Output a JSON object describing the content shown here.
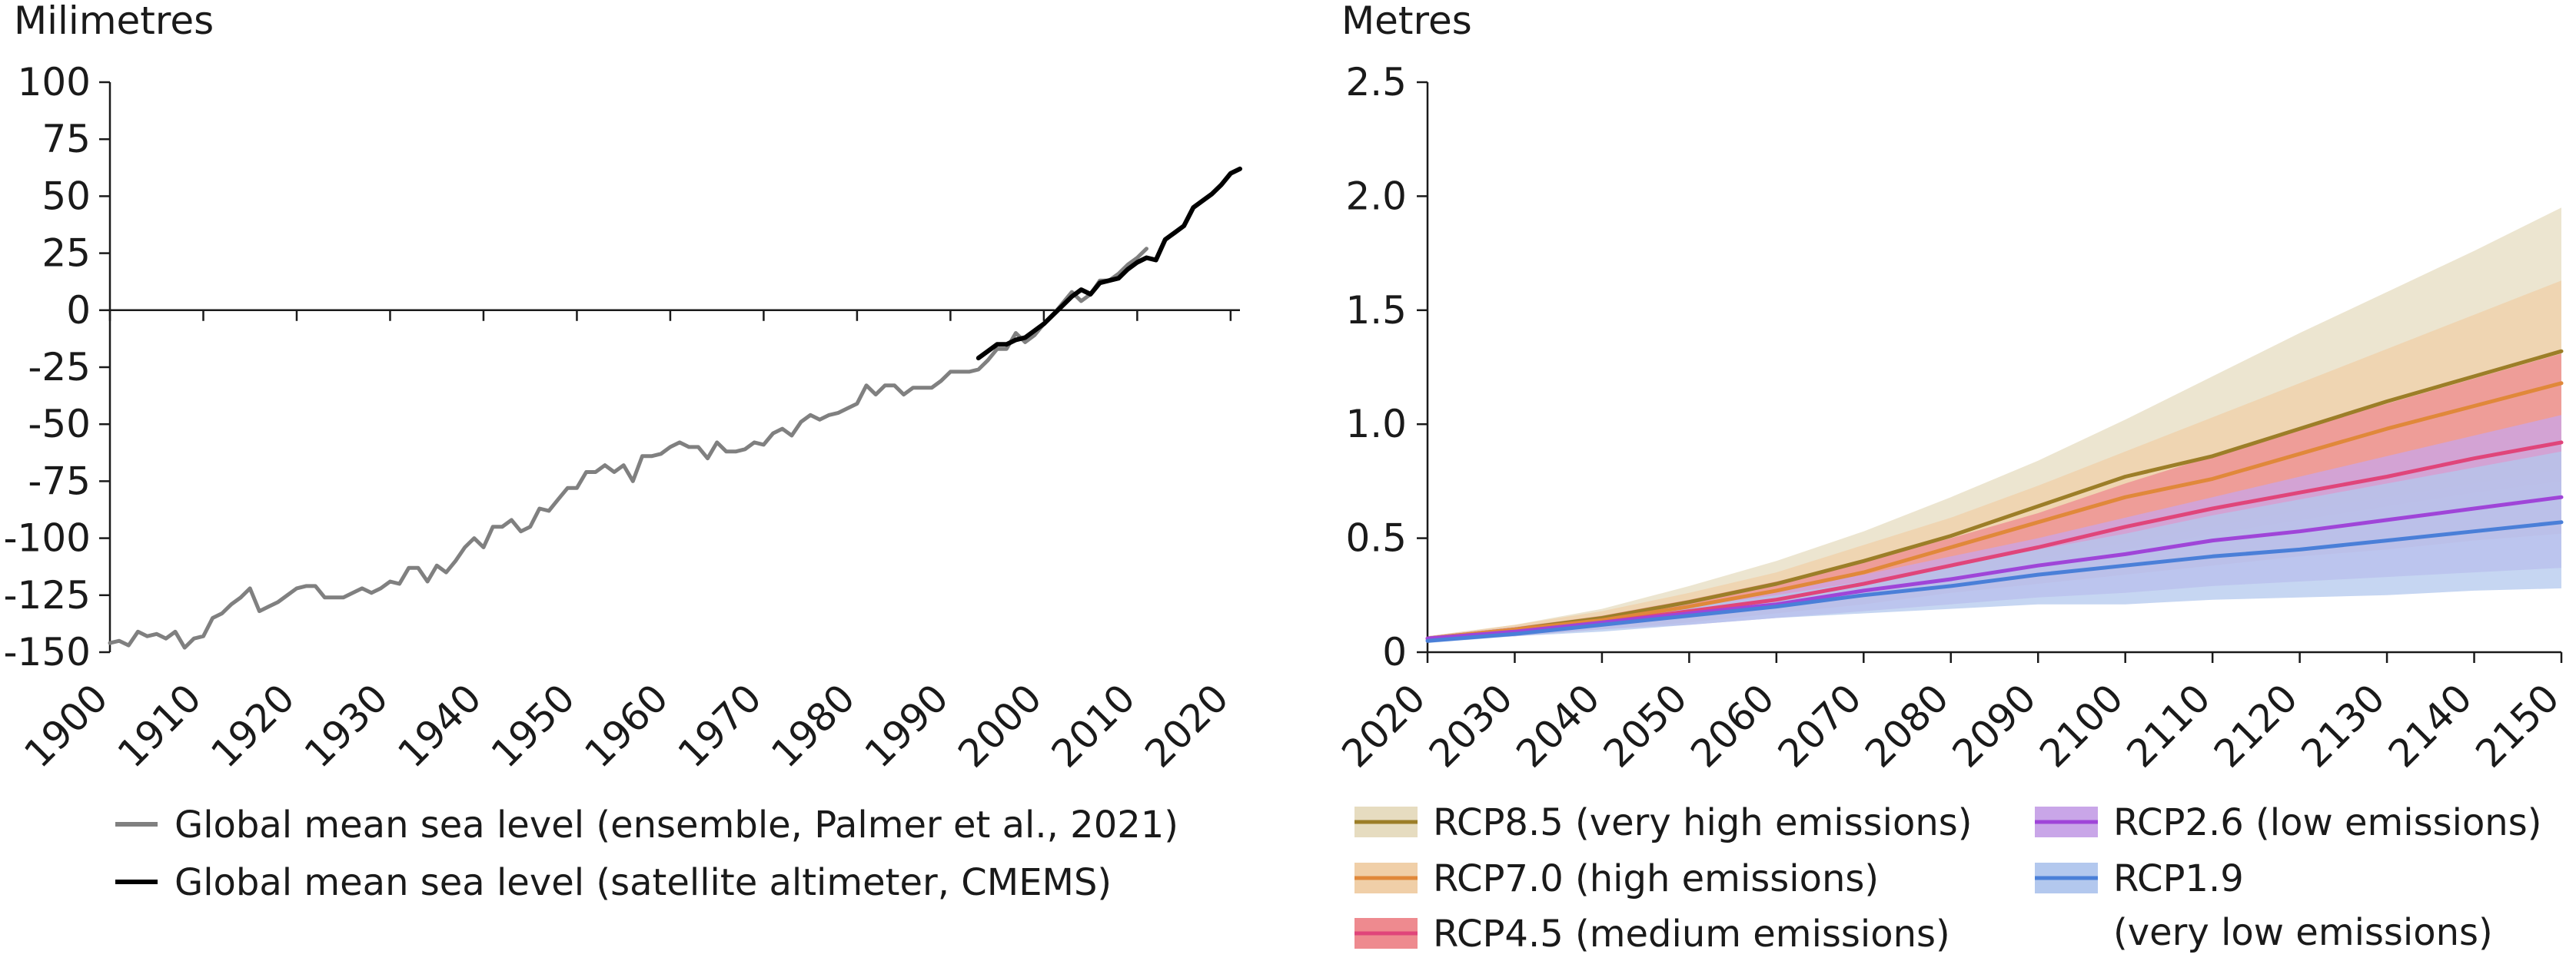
{
  "chart_data": [
    {
      "type": "line",
      "ylabel": "Milimetres",
      "xlim": [
        1900,
        2021
      ],
      "ylim": [
        -150,
        100
      ],
      "x_ticks": [
        "1900",
        "1910",
        "1920",
        "1930",
        "1940",
        "1950",
        "1960",
        "1970",
        "1980",
        "1990",
        "2000",
        "2010",
        "2020"
      ],
      "y_ticks": [
        "100",
        "75",
        "50",
        "25",
        "0",
        "-25",
        "-50",
        "-75",
        "-100",
        "-125",
        "-150"
      ],
      "zero_line": true,
      "legend_position": "bottom-left",
      "series": [
        {
          "name": "Global mean sea level (ensemble, Palmer et al., 2021)",
          "color": "#808080",
          "x": [
            1900,
            1901,
            1902,
            1903,
            1904,
            1905,
            1906,
            1907,
            1908,
            1909,
            1910,
            1911,
            1912,
            1913,
            1914,
            1915,
            1916,
            1917,
            1918,
            1919,
            1920,
            1921,
            1922,
            1923,
            1924,
            1925,
            1926,
            1927,
            1928,
            1929,
            1930,
            1931,
            1932,
            1933,
            1934,
            1935,
            1936,
            1937,
            1938,
            1939,
            1940,
            1941,
            1942,
            1943,
            1944,
            1945,
            1946,
            1947,
            1948,
            1949,
            1950,
            1951,
            1952,
            1953,
            1954,
            1955,
            1956,
            1957,
            1958,
            1959,
            1960,
            1961,
            1962,
            1963,
            1964,
            1965,
            1966,
            1967,
            1968,
            1969,
            1970,
            1971,
            1972,
            1973,
            1974,
            1975,
            1976,
            1977,
            1978,
            1979,
            1980,
            1981,
            1982,
            1983,
            1984,
            1985,
            1986,
            1987,
            1988,
            1989,
            1990,
            1991,
            1992,
            1993,
            1994,
            1995,
            1996,
            1997,
            1998,
            1999,
            2000,
            2001,
            2002,
            2003,
            2004,
            2005,
            2006,
            2007,
            2008,
            2009,
            2010,
            2011
          ],
          "values": [
            -146,
            -145,
            -147,
            -141,
            -143,
            -142,
            -144,
            -141,
            -148,
            -144,
            -143,
            -135,
            -133,
            -129,
            -126,
            -122,
            -132,
            -130,
            -128,
            -125,
            -122,
            -121,
            -121,
            -126,
            -126,
            -126,
            -124,
            -122,
            -124,
            -122,
            -119,
            -120,
            -113,
            -113,
            -119,
            -112,
            -115,
            -110,
            -104,
            -100,
            -104,
            -95,
            -95,
            -92,
            -97,
            -95,
            -87,
            -88,
            -83,
            -78,
            -78,
            -71,
            -71,
            -68,
            -71,
            -68,
            -75,
            -64,
            -64,
            -63,
            -60,
            -58,
            -60,
            -60,
            -65,
            -58,
            -62,
            -62,
            -61,
            -58,
            -59,
            -54,
            -52,
            -55,
            -49,
            -46,
            -48,
            -46,
            -45,
            -43,
            -41,
            -33,
            -37,
            -33,
            -33,
            -37,
            -34,
            -34,
            -34,
            -31,
            -27,
            -27,
            -27,
            -26,
            -22,
            -17,
            -17,
            -10,
            -14,
            -11,
            -6,
            -2,
            3,
            8,
            4,
            7,
            13,
            13,
            16,
            20,
            23,
            27
          ]
        },
        {
          "name": "Global mean sea level (satellite altimeter, CMEMS)",
          "color": "#000000",
          "x": [
            1993,
            1994,
            1995,
            1996,
            1997,
            1998,
            1999,
            2000,
            2001,
            2002,
            2003,
            2004,
            2005,
            2006,
            2007,
            2008,
            2009,
            2010,
            2011,
            2012,
            2013,
            2014,
            2015,
            2016,
            2017,
            2018,
            2019,
            2020,
            2021
          ],
          "values": [
            -21,
            -18,
            -15,
            -15,
            -13,
            -12,
            -9,
            -6,
            -2,
            2,
            6,
            9,
            7,
            12,
            13,
            14,
            18,
            21,
            23,
            22,
            31,
            34,
            37,
            45,
            48,
            51,
            55,
            60,
            62
          ]
        }
      ]
    },
    {
      "type": "area",
      "ylabel": "Metres",
      "xlim": [
        2020,
        2150
      ],
      "ylim": [
        0,
        2.5
      ],
      "x_ticks": [
        "2020",
        "2030",
        "2040",
        "2050",
        "2060",
        "2070",
        "2080",
        "2090",
        "2100",
        "2110",
        "2120",
        "2130",
        "2140",
        "2150"
      ],
      "y_ticks": [
        "2.5",
        "2.0",
        "1.5",
        "1.0",
        "0.5",
        "0"
      ],
      "legend_position": "bottom",
      "x": [
        2020,
        2030,
        2040,
        2050,
        2060,
        2070,
        2080,
        2090,
        2100,
        2110,
        2120,
        2130,
        2140,
        2150
      ],
      "series": [
        {
          "name": "RCP8.5 (very high emissions)",
          "color": "#9C7E28",
          "band_color": "#E6DCC0",
          "values": [
            0.06,
            0.1,
            0.15,
            0.22,
            0.3,
            0.4,
            0.51,
            0.64,
            0.77,
            0.86,
            0.98,
            1.1,
            1.21,
            1.32
          ],
          "lower": [
            0.05,
            0.08,
            0.12,
            0.17,
            0.22,
            0.28,
            0.34,
            0.41,
            0.48,
            0.55,
            0.62,
            0.68,
            0.74,
            0.8
          ],
          "upper": [
            0.07,
            0.12,
            0.19,
            0.29,
            0.4,
            0.53,
            0.68,
            0.84,
            1.02,
            1.21,
            1.4,
            1.58,
            1.76,
            1.95
          ]
        },
        {
          "name": "RCP7.0 (high emissions)",
          "color": "#E0883A",
          "band_color": "#F0CFA8",
          "values": [
            0.06,
            0.1,
            0.14,
            0.2,
            0.27,
            0.35,
            0.46,
            0.57,
            0.68,
            0.76,
            0.87,
            0.98,
            1.08,
            1.18
          ],
          "lower": [
            0.05,
            0.08,
            0.11,
            0.15,
            0.2,
            0.26,
            0.32,
            0.38,
            0.45,
            0.52,
            0.58,
            0.64,
            0.7,
            0.75
          ],
          "upper": [
            0.07,
            0.12,
            0.18,
            0.26,
            0.35,
            0.47,
            0.59,
            0.73,
            0.88,
            1.03,
            1.18,
            1.33,
            1.48,
            1.63
          ]
        },
        {
          "name": "RCP4.5 (medium emissions)",
          "color": "#E0457A",
          "band_color": "#EE8A8F",
          "values": [
            0.06,
            0.09,
            0.13,
            0.18,
            0.23,
            0.3,
            0.38,
            0.46,
            0.55,
            0.63,
            0.7,
            0.77,
            0.85,
            0.92
          ],
          "lower": [
            0.05,
            0.07,
            0.1,
            0.13,
            0.17,
            0.21,
            0.26,
            0.3,
            0.34,
            0.38,
            0.42,
            0.45,
            0.49,
            0.52
          ],
          "upper": [
            0.07,
            0.11,
            0.16,
            0.23,
            0.31,
            0.4,
            0.5,
            0.61,
            0.74,
            0.86,
            0.98,
            1.09,
            1.2,
            1.31
          ]
        },
        {
          "name": "RCP2.6 (low emissions)",
          "color": "#9F45D8",
          "band_color": "#C9A6E8",
          "values": [
            0.06,
            0.09,
            0.13,
            0.17,
            0.21,
            0.27,
            0.32,
            0.38,
            0.43,
            0.49,
            0.53,
            0.58,
            0.63,
            0.68
          ],
          "lower": [
            0.05,
            0.07,
            0.1,
            0.12,
            0.15,
            0.18,
            0.21,
            0.24,
            0.26,
            0.29,
            0.31,
            0.33,
            0.35,
            0.37
          ],
          "upper": [
            0.07,
            0.11,
            0.15,
            0.21,
            0.27,
            0.34,
            0.42,
            0.5,
            0.59,
            0.68,
            0.77,
            0.86,
            0.95,
            1.04
          ]
        },
        {
          "name": "RCP1.9\n(very low emissions)",
          "color": "#4A7FD8",
          "band_color": "#B3C8EE",
          "values": [
            0.05,
            0.08,
            0.12,
            0.16,
            0.2,
            0.25,
            0.29,
            0.34,
            0.38,
            0.42,
            0.45,
            0.49,
            0.53,
            0.57
          ],
          "lower": [
            0.04,
            0.07,
            0.09,
            0.12,
            0.15,
            0.17,
            0.19,
            0.21,
            0.21,
            0.23,
            0.24,
            0.25,
            0.27,
            0.28
          ],
          "upper": [
            0.06,
            0.1,
            0.14,
            0.2,
            0.25,
            0.31,
            0.38,
            0.45,
            0.52,
            0.6,
            0.67,
            0.74,
            0.81,
            0.88
          ]
        }
      ]
    }
  ]
}
